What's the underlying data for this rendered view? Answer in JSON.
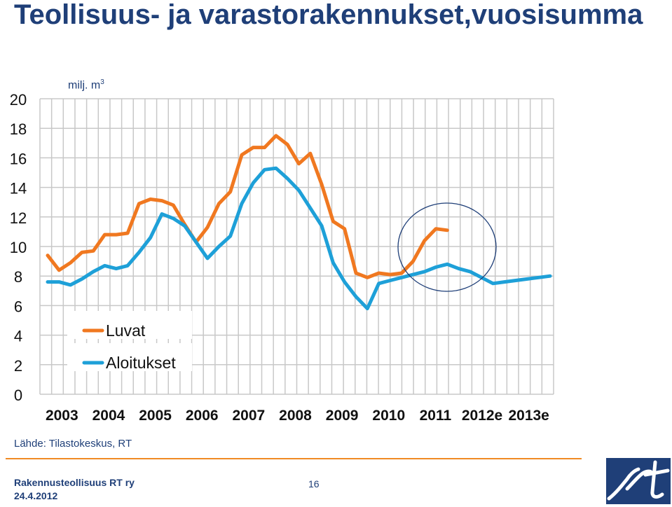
{
  "slide": {
    "title": "Teollisuus- ja varastorakennukset,vuosisumma",
    "unit_text": "milj. m",
    "unit_sup": "3",
    "source": "Lähde: Tilastokeskus, RT",
    "organization": "Rakennusteollisuus RT ry",
    "date": "24.4.2012",
    "page_number": "16"
  },
  "chart_data": {
    "type": "line",
    "title": "Teollisuus- ja varastorakennukset,vuosisumma",
    "ylabel": "milj. m3",
    "ylim": [
      0,
      20
    ],
    "yticks": [
      0,
      2,
      4,
      6,
      8,
      10,
      12,
      14,
      16,
      18,
      20
    ],
    "xlim": [
      0,
      44
    ],
    "xtick_labels": [
      "2003",
      "2004",
      "2005",
      "2006",
      "2007",
      "2008",
      "2009",
      "2010",
      "2011",
      "2012e",
      "2013e"
    ],
    "grid": true,
    "legend_position": "lower-left",
    "series": [
      {
        "name": "Luvat",
        "color": "#f07820",
        "x": [
          0,
          1,
          2,
          3,
          4,
          5,
          6,
          7,
          8,
          9,
          10,
          11,
          12,
          13,
          14,
          15,
          16,
          17,
          18,
          19,
          20,
          21,
          22,
          23,
          24,
          25,
          26,
          27,
          28,
          29,
          30,
          31,
          32,
          33,
          34,
          35
        ],
        "values": [
          9.4,
          8.4,
          8.9,
          9.6,
          9.7,
          10.8,
          10.8,
          10.9,
          12.9,
          13.2,
          13.1,
          12.8,
          11.5,
          10.3,
          11.3,
          12.9,
          13.7,
          16.2,
          16.7,
          16.7,
          17.5,
          16.9,
          15.6,
          16.3,
          14.2,
          11.7,
          11.2,
          8.2,
          7.9,
          8.2,
          8.1,
          8.2,
          9.0,
          10.4,
          11.2,
          11.1
        ]
      },
      {
        "name": "Aloitukset",
        "color": "#1ea0d8",
        "x": [
          0,
          1,
          2,
          3,
          4,
          5,
          6,
          7,
          8,
          9,
          10,
          11,
          12,
          13,
          14,
          15,
          16,
          17,
          18,
          19,
          20,
          21,
          22,
          23,
          24,
          25,
          26,
          27,
          28,
          29,
          30,
          31,
          32,
          33,
          34,
          35,
          36,
          37,
          38,
          39,
          40,
          41,
          42,
          43,
          44
        ],
        "values": [
          7.6,
          7.6,
          7.4,
          7.8,
          8.3,
          8.7,
          8.5,
          8.7,
          9.6,
          10.6,
          12.2,
          11.9,
          11.4,
          10.3,
          9.2,
          10.0,
          10.7,
          12.9,
          14.3,
          15.2,
          15.3,
          14.6,
          13.8,
          12.6,
          11.4,
          8.9,
          7.6,
          6.6,
          5.8,
          7.5,
          7.7,
          7.9,
          8.1,
          8.3,
          8.6,
          8.8,
          8.5,
          8.3,
          7.9,
          7.5,
          7.6,
          7.7,
          7.8,
          7.9,
          8.0
        ]
      }
    ]
  }
}
